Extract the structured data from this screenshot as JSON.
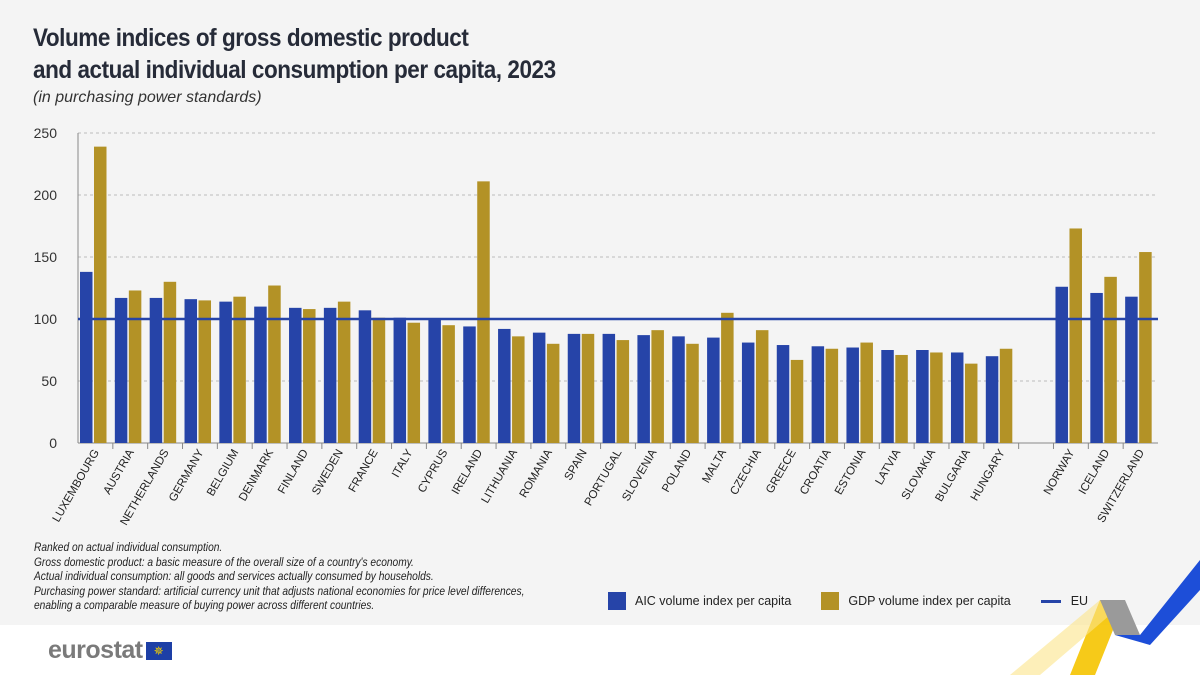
{
  "title_line1": "Volume indices of gross domestic product",
  "title_line2": "and actual individual consumption per capita, 2023",
  "subtitle": "(in purchasing power standards)",
  "notes": [
    "Ranked on actual individual consumption.",
    "Gross domestic product: a basic measure of the overall size of a country's economy.",
    "Actual individual consumption: all goods and services actually consumed by households.",
    "Purchasing power standard: artificial currency unit that adjusts national economies for price level differences,",
    "enabling a comparable measure of buying power across different countries."
  ],
  "logo": "eurostat",
  "colors": {
    "aic": "#2644a8",
    "gdp": "#b39226",
    "eu": "#2644a8"
  },
  "chart_data": {
    "type": "bar",
    "categories": [
      "LUXEMBOURG",
      "AUSTRIA",
      "NETHERLANDS",
      "GERMANY",
      "BELGIUM",
      "DENMARK",
      "FINLAND",
      "SWEDEN",
      "FRANCE",
      "ITALY",
      "CYPRUS",
      "IRELAND",
      "LITHUANIA",
      "ROMANIA",
      "SPAIN",
      "PORTUGAL",
      "SLOVENIA",
      "POLAND",
      "MALTA",
      "CZECHIA",
      "GREECE",
      "CROATIA",
      "ESTONIA",
      "LATVIA",
      "SLOVAKIA",
      "BULGARIA",
      "HUNGARY",
      "",
      "NORWAY",
      "ICELAND",
      "SWITZERLAND"
    ],
    "series": [
      {
        "name": "AIC volume index per capita",
        "values": [
          138,
          117,
          117,
          116,
          114,
          110,
          109,
          109,
          107,
          101,
          100,
          94,
          92,
          89,
          88,
          88,
          87,
          86,
          85,
          81,
          79,
          78,
          77,
          75,
          75,
          73,
          70,
          null,
          126,
          121,
          118
        ]
      },
      {
        "name": "GDP volume index per capita",
        "values": [
          239,
          123,
          130,
          115,
          118,
          127,
          108,
          114,
          101,
          97,
          95,
          211,
          86,
          80,
          88,
          83,
          91,
          80,
          105,
          91,
          67,
          76,
          81,
          71,
          73,
          64,
          76,
          null,
          173,
          134,
          154
        ]
      }
    ],
    "reference_line": {
      "name": "EU",
      "value": 100
    },
    "ylim": [
      0,
      250
    ],
    "yticks": [
      0,
      50,
      100,
      150,
      200,
      250
    ],
    "grid": true,
    "legend": "bottom-right"
  }
}
